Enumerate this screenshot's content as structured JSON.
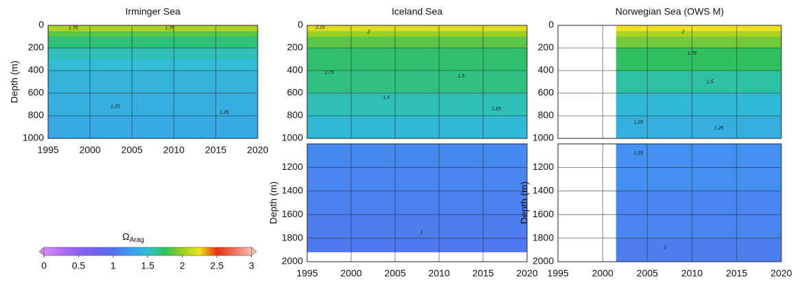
{
  "charts": [
    {
      "type": "heatmap",
      "title": "Irminger Sea",
      "ylabel": "Depth (m)",
      "xlim": [
        1995,
        2020
      ],
      "xticks": [
        1995,
        2000,
        2005,
        2010,
        2015,
        2020
      ],
      "show_xtick_labels": true,
      "ylim": [
        0,
        1000
      ],
      "yticks": [
        0,
        200,
        400,
        600,
        800,
        1000
      ],
      "y_inverted": true,
      "xdata": [
        1995,
        2020
      ],
      "depths": [
        0,
        50,
        100,
        200,
        300,
        400,
        600,
        800,
        1000
      ],
      "values": [
        2.05,
        1.85,
        1.7,
        1.55,
        1.48,
        1.42,
        1.38,
        1.35
      ],
      "annotations": [
        {
          "text": "1.75",
          "x": 1998,
          "y": 25
        },
        {
          "text": "1.75",
          "x": 2009.5,
          "y": 25
        },
        {
          "text": "1.25",
          "x": 2003,
          "y": 720
        },
        {
          "text": "1.25",
          "x": 2016,
          "y": 770
        }
      ]
    },
    {
      "type": "heatmap",
      "title": "Iceland Sea",
      "xlim": [
        1995,
        2020
      ],
      "xticks": [
        1995,
        2000,
        2005,
        2010,
        2015,
        2020
      ],
      "show_xtick_labels": false,
      "ylim": [
        0,
        1000
      ],
      "yticks": [
        0,
        200,
        400,
        600,
        800,
        1000
      ],
      "y_inverted": true,
      "xdata": [
        1995,
        2020
      ],
      "depths": [
        0,
        50,
        100,
        200,
        400,
        600,
        800,
        1000
      ],
      "values": [
        2.2,
        2.0,
        1.85,
        1.72,
        1.68,
        1.55,
        1.45
      ],
      "annotations": [
        {
          "text": "2.25",
          "x": 1996.5,
          "y": 20
        },
        {
          "text": "2",
          "x": 2002,
          "y": 60
        },
        {
          "text": "1.75",
          "x": 1997.5,
          "y": 420
        },
        {
          "text": "1.5",
          "x": 2004,
          "y": 640
        },
        {
          "text": "1.5",
          "x": 2012.5,
          "y": 450
        },
        {
          "text": "1.25",
          "x": 2016.5,
          "y": 740
        }
      ]
    },
    {
      "type": "heatmap",
      "ylabel": "Depth (m)",
      "xlim": [
        1995,
        2020
      ],
      "xticks": [
        1995,
        2000,
        2005,
        2010,
        2015,
        2020
      ],
      "show_xtick_labels": true,
      "ylim": [
        1000,
        2000
      ],
      "yticks": [
        1200,
        1400,
        1600,
        1800,
        2000
      ],
      "y_inverted": true,
      "xdata": [
        1995,
        2020
      ],
      "depths": [
        1000,
        1200,
        1400,
        1600,
        1800,
        1920
      ],
      "values": [
        1.15,
        1.12,
        1.1,
        1.08,
        1.05
      ],
      "annotations": [
        {
          "text": "1",
          "x": 2008,
          "y": 1750
        }
      ]
    },
    {
      "type": "heatmap",
      "title": "Norwegian Sea (OWS M)",
      "xlim": [
        1995,
        2020
      ],
      "xticks": [
        1995,
        2000,
        2005,
        2010,
        2015,
        2020
      ],
      "show_xtick_labels": false,
      "ylim": [
        0,
        1000
      ],
      "yticks": [
        0,
        200,
        400,
        600,
        800,
        1000
      ],
      "y_inverted": true,
      "xdata": [
        2001.5,
        2020
      ],
      "depths": [
        0,
        50,
        100,
        200,
        400,
        600,
        800,
        1000
      ],
      "values": [
        2.25,
        2.05,
        1.9,
        1.75,
        1.6,
        1.45,
        1.38
      ],
      "annotations": [
        {
          "text": "2",
          "x": 2009,
          "y": 60
        },
        {
          "text": "1.75",
          "x": 2010,
          "y": 250
        },
        {
          "text": "1.5",
          "x": 2012,
          "y": 500
        },
        {
          "text": "1.25",
          "x": 2004,
          "y": 860
        },
        {
          "text": "1.25",
          "x": 2013,
          "y": 910
        }
      ]
    },
    {
      "type": "heatmap",
      "ylabel": "Depth (m)",
      "xlim": [
        1995,
        2020
      ],
      "xticks": [
        1995,
        2000,
        2005,
        2010,
        2015,
        2020
      ],
      "show_xtick_labels": true,
      "ylim": [
        1000,
        2000
      ],
      "yticks": [
        1200,
        1400,
        1600,
        1800,
        2000
      ],
      "y_inverted": true,
      "xdata": [
        2001.5,
        2020
      ],
      "depths": [
        1000,
        1400,
        1800,
        2000
      ],
      "values": [
        1.18,
        1.12,
        1.08
      ],
      "annotations": [
        {
          "text": "1.25",
          "x": 2004,
          "y": 1080
        },
        {
          "text": "1",
          "x": 2007,
          "y": 1880
        }
      ]
    }
  ],
  "colorbar": {
    "label": "Ω",
    "label_sub": "Arag",
    "lim": [
      0,
      3
    ],
    "ticks": [
      0,
      0.5,
      1,
      1.5,
      2,
      2.5,
      3
    ],
    "colors": [
      "#d58cff",
      "#b070ff",
      "#9060f8",
      "#7060f0",
      "#5570f0",
      "#3c9cf0",
      "#30c0d0",
      "#30c060",
      "#9cd020",
      "#f0e020",
      "#e83010",
      "#f07060",
      "#f8c0b0"
    ]
  }
}
